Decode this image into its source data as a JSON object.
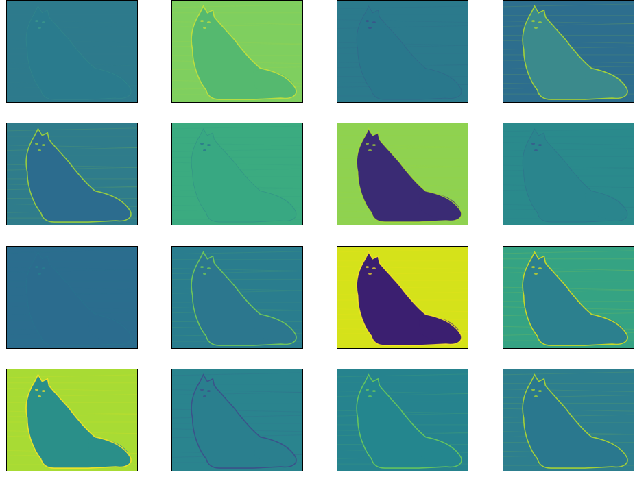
{
  "figure": {
    "rows": 4,
    "cols": 4,
    "panels": [
      {
        "style": "flat",
        "bg": "#2d7a8c",
        "cat": "#2a7b8d",
        "edge": "#3d9b8a"
      },
      {
        "style": "bright",
        "bg": "#7fcf5f",
        "cat": "#55b96f",
        "edge": "#c9e23a"
      },
      {
        "style": "flat",
        "bg": "#2b7a8c",
        "cat": "#29788c",
        "edge": "#3e4a89"
      },
      {
        "style": "edge",
        "bg": "#2d6e8e",
        "cat": "#3b8a8c",
        "edge": "#b5de2b"
      },
      {
        "style": "edge",
        "bg": "#2f7c8b",
        "cat": "#2c6c8e",
        "edge": "#a8db34"
      },
      {
        "style": "flat",
        "bg": "#3bab80",
        "cat": "#38a882",
        "edge": "#2a6f8e"
      },
      {
        "style": "dark-cat",
        "bg": "#8fd250",
        "cat": "#3a2b74",
        "edge": "#a7db35"
      },
      {
        "style": "flat",
        "bg": "#2a8a8c",
        "cat": "#2a858d",
        "edge": "#3a538b"
      },
      {
        "style": "flat",
        "bg": "#2b6d8e",
        "cat": "#2b6c8e",
        "edge": "#26828e"
      },
      {
        "style": "edge",
        "bg": "#2a7d8e",
        "cat": "#2c778e",
        "edge": "#7ad151"
      },
      {
        "style": "dark-cat",
        "bg": "#d5e21a",
        "cat": "#3b1f70",
        "edge": "#fde725"
      },
      {
        "style": "edge",
        "bg": "#35a383",
        "cat": "#2c808e",
        "edge": "#dfe318"
      },
      {
        "style": "bright-cat",
        "bg": "#a8db34",
        "cat": "#2a8f89",
        "edge": "#fde725"
      },
      {
        "style": "edge",
        "bg": "#2a848e",
        "cat": "#2a7f8e",
        "edge": "#3e4a89"
      },
      {
        "style": "edge",
        "bg": "#26838e",
        "cat": "#24868e",
        "edge": "#70cf57"
      },
      {
        "style": "edge",
        "bg": "#2d7e8e",
        "cat": "#2a788e",
        "edge": "#b8de29"
      }
    ]
  }
}
